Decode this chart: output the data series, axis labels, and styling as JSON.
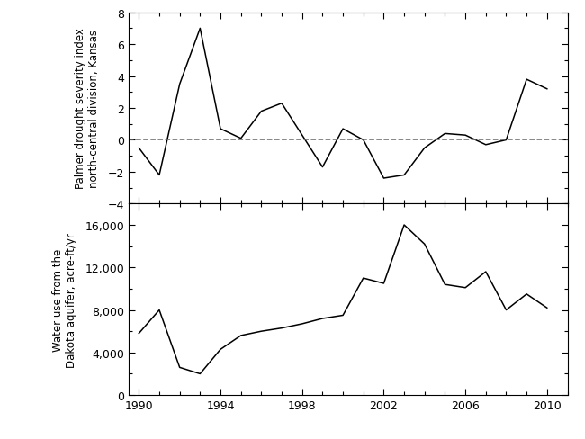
{
  "years_pdsi": [
    1990,
    1991,
    1992,
    1993,
    1994,
    1995,
    1996,
    1997,
    1998,
    1999,
    2000,
    2001,
    2002,
    2003,
    2004,
    2005,
    2006,
    2007,
    2008,
    2009,
    2010
  ],
  "pdsi_values": [
    -0.5,
    -2.2,
    3.5,
    7.0,
    0.7,
    0.1,
    1.8,
    2.3,
    0.3,
    -1.7,
    0.7,
    0.0,
    -2.4,
    -2.2,
    -0.5,
    0.4,
    0.3,
    -0.3,
    0.0,
    3.8,
    3.2
  ],
  "years_water": [
    1990,
    1991,
    1992,
    1993,
    1994,
    1995,
    1996,
    1997,
    1998,
    1999,
    2000,
    2001,
    2002,
    2003,
    2004,
    2005,
    2006,
    2007,
    2008,
    2009,
    2010
  ],
  "water_values": [
    5800,
    8000,
    2600,
    2000,
    4300,
    5600,
    6000,
    6300,
    6700,
    7200,
    7500,
    11000,
    10500,
    16000,
    14200,
    10400,
    10100,
    11600,
    8000,
    9500,
    8200
  ],
  "pdsi_ylim": [
    -4,
    8
  ],
  "pdsi_yticks": [
    -4,
    -2,
    0,
    2,
    4,
    6,
    8
  ],
  "water_ylim": [
    0,
    18000
  ],
  "water_yticks": [
    0,
    4000,
    8000,
    12000,
    16000
  ],
  "xlim": [
    1989.5,
    2011.0
  ],
  "xticks": [
    1990,
    1994,
    1998,
    2002,
    2006,
    2010
  ],
  "pdsi_ylabel": "Palmer drought severity index\nnorth-central division, Kansas",
  "water_ylabel": "Water use from the\nDakota aquifer, acre-ft/yr",
  "line_color": "#000000",
  "dashed_color": "#666666",
  "bg_color": "#ffffff",
  "linewidth": 1.1,
  "fontsize_tick": 9,
  "fontsize_label": 8.5
}
